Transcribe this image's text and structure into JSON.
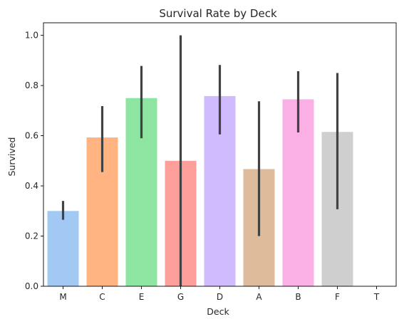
{
  "chart_data": {
    "type": "bar",
    "title": "Survival Rate by Deck",
    "xlabel": "Deck",
    "ylabel": "Survived",
    "categories": [
      "M",
      "C",
      "E",
      "G",
      "D",
      "A",
      "B",
      "F",
      "T"
    ],
    "values": [
      0.3,
      0.593,
      0.75,
      0.5,
      0.758,
      0.467,
      0.745,
      0.615,
      0.0
    ],
    "ci_low": [
      0.265,
      0.455,
      0.59,
      0.0,
      0.605,
      0.2,
      0.613,
      0.307,
      0.0
    ],
    "ci_high": [
      0.34,
      0.718,
      0.878,
      1.0,
      0.882,
      0.737,
      0.857,
      0.85,
      0.0
    ],
    "ylim": [
      0.0,
      1.05
    ],
    "yticks": [
      "0.0",
      "0.2",
      "0.4",
      "0.6",
      "0.8",
      "1.0"
    ],
    "grid": false,
    "legend": "none",
    "colors": [
      "#a1c9f4",
      "#ffb482",
      "#8de5a1",
      "#ff9f9b",
      "#d0bbff",
      "#debb9b",
      "#fab0e4",
      "#cfcfcf",
      "#fffea3"
    ],
    "errorbar_color": "#424242"
  }
}
